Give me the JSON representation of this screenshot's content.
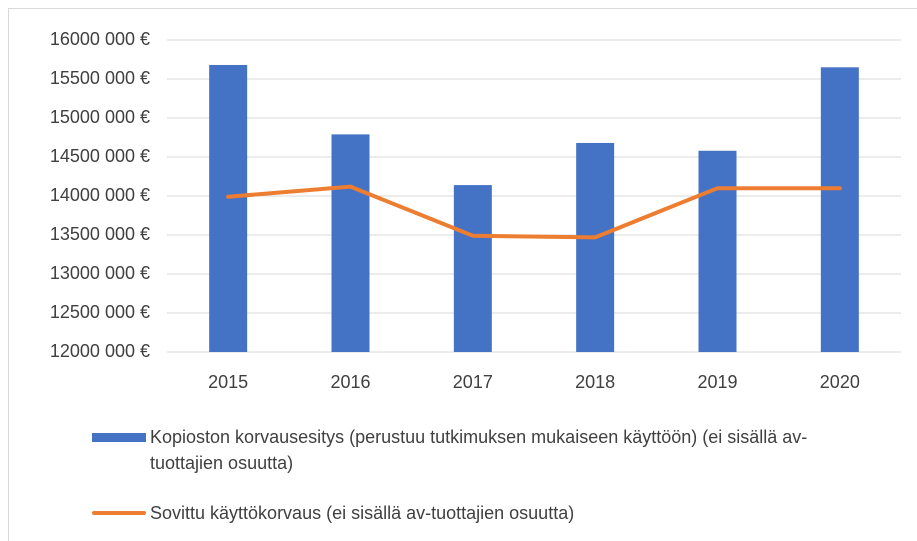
{
  "chart_data": {
    "type": "bar-line",
    "categories": [
      "2015",
      "2016",
      "2017",
      "2018",
      "2019",
      "2020"
    ],
    "series": [
      {
        "name": "Kopioston korvausesitys (perustuu tutkimuksen mukaiseen käyttöön) (ei sisällä av-tuottajien osuutta)",
        "type": "bar",
        "color": "#4472c4",
        "values": [
          15680000,
          14790000,
          14140000,
          14680000,
          14580000,
          15650000
        ]
      },
      {
        "name": "Sovittu käyttökorvaus (ei sisällä av-tuottajien osuutta)",
        "type": "line",
        "color": "#ed7d31",
        "values": [
          13990000,
          14120000,
          13490000,
          13470000,
          14100000,
          14100000
        ]
      }
    ],
    "ylim": [
      12000000,
      16000000
    ],
    "yticks": [
      {
        "value": 12000000,
        "label": "12000 000 €"
      },
      {
        "value": 12500000,
        "label": "12500 000 €"
      },
      {
        "value": 13000000,
        "label": "13000 000 €"
      },
      {
        "value": 13500000,
        "label": "13500 000 €"
      },
      {
        "value": 14000000,
        "label": "14000 000 €"
      },
      {
        "value": 14500000,
        "label": "14500 000 €"
      },
      {
        "value": 15000000,
        "label": "15000 000 €"
      },
      {
        "value": 15500000,
        "label": "15500 000 €"
      },
      {
        "value": 16000000,
        "label": "16000 000 €"
      }
    ],
    "grid": true,
    "legend": "bottom"
  }
}
